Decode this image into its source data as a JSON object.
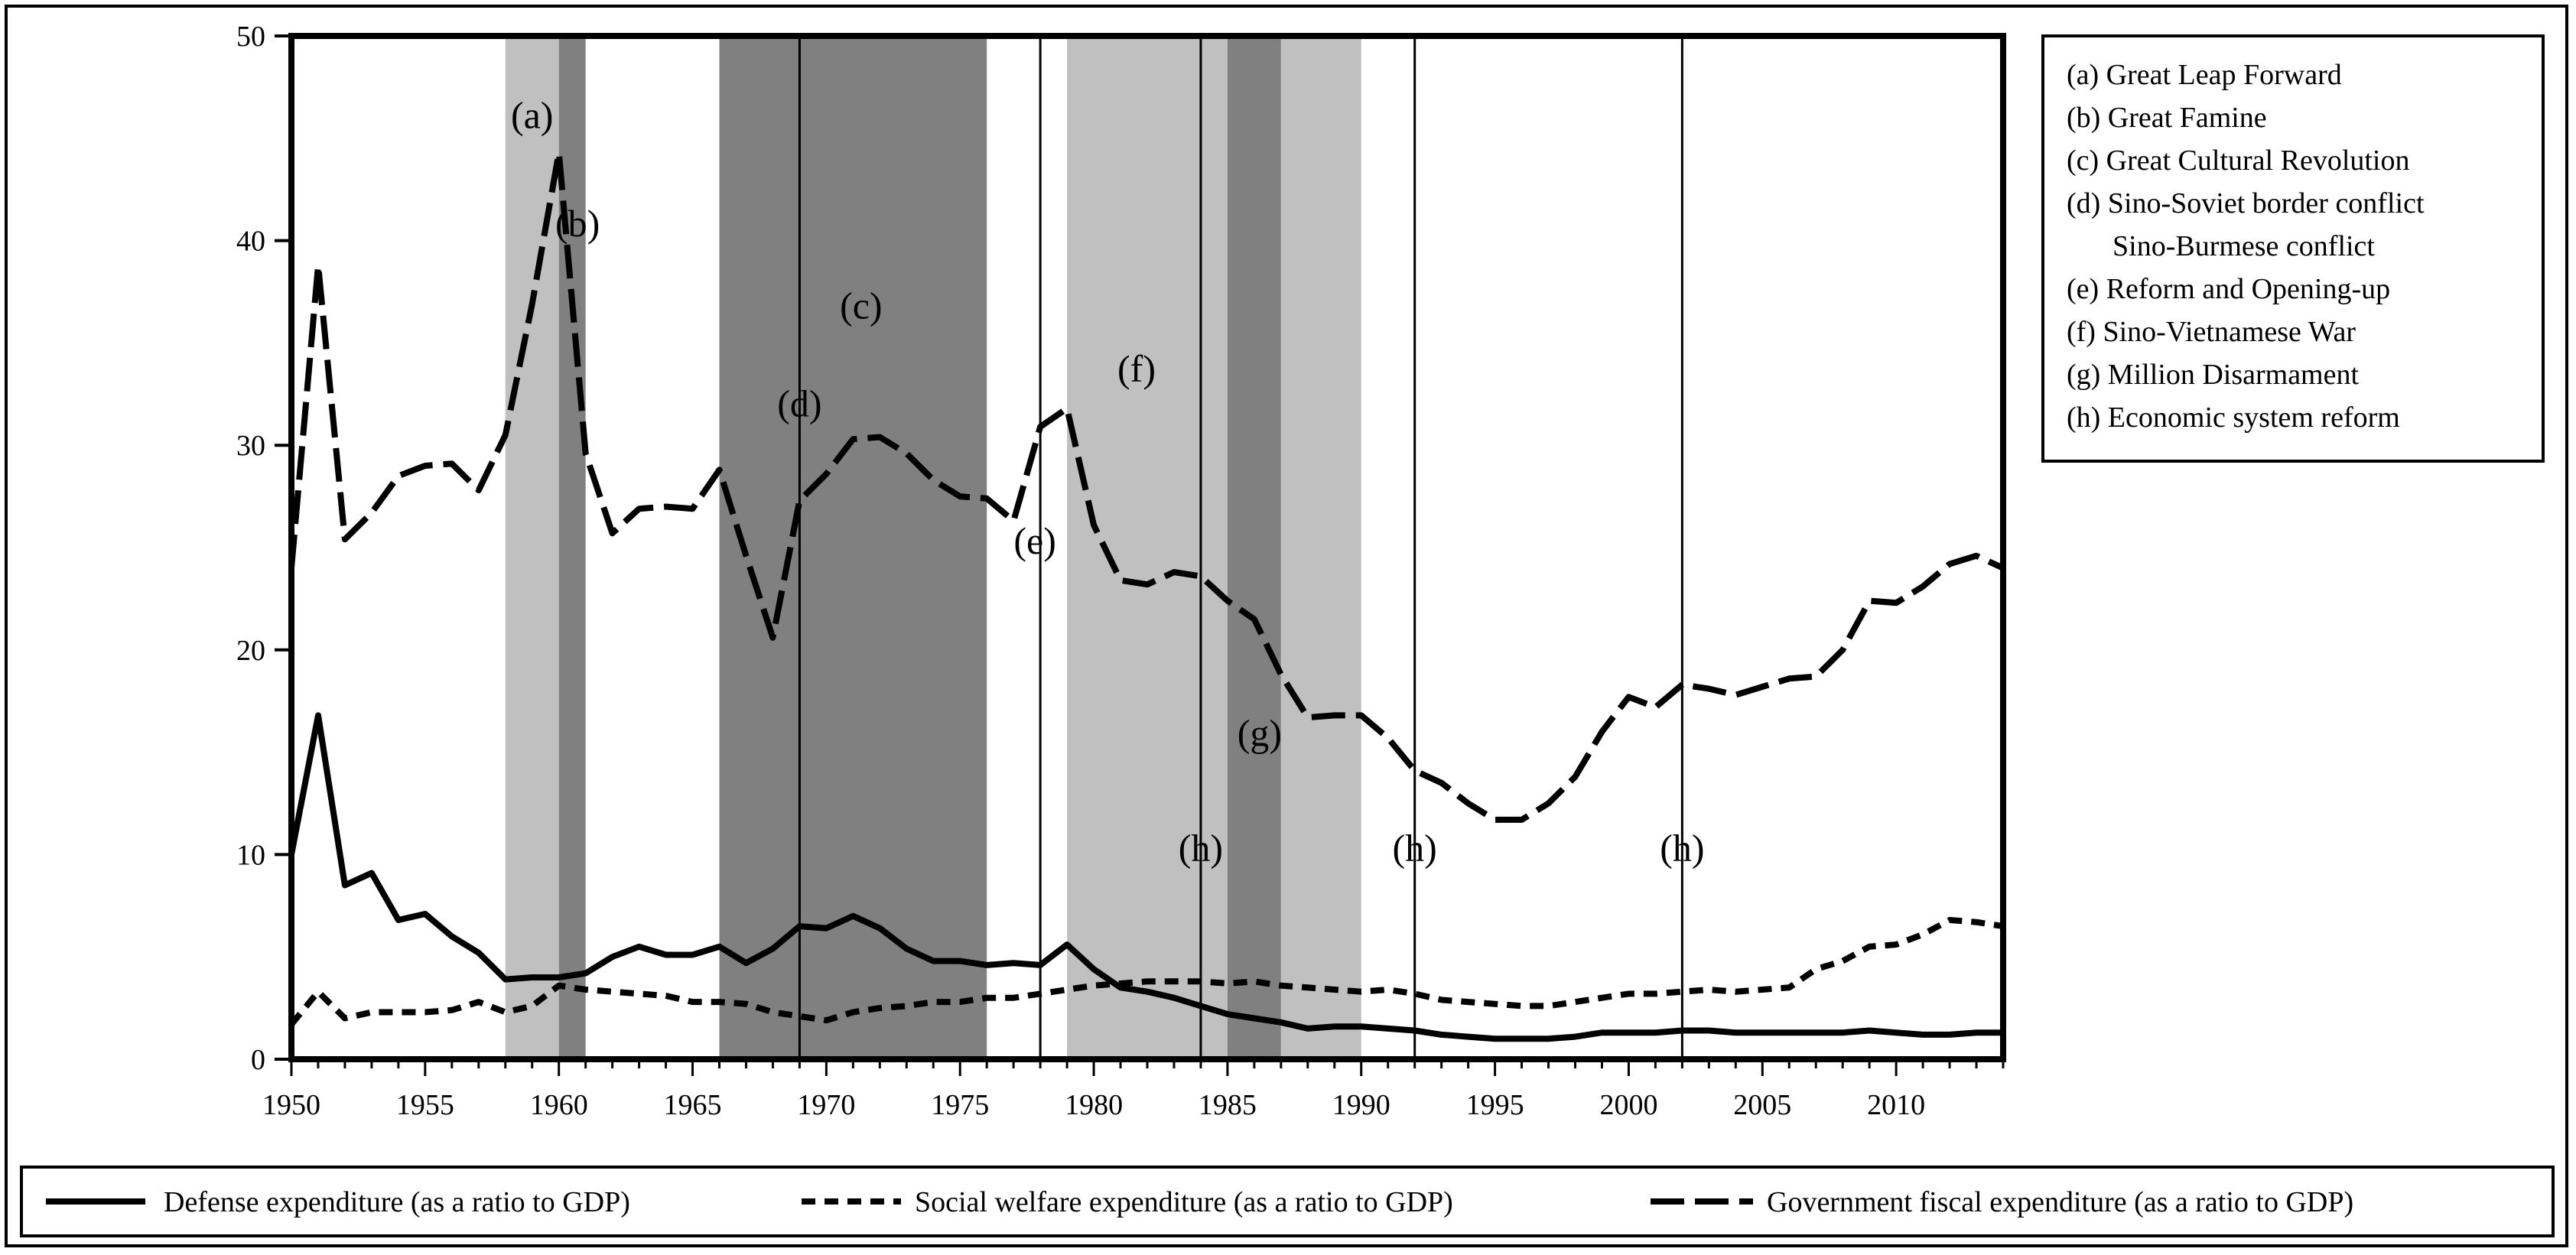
{
  "chart_data": {
    "type": "line",
    "title": "",
    "xlabel": "",
    "ylabel": "",
    "xlim": [
      1950,
      2014
    ],
    "ylim": [
      0,
      50
    ],
    "x_ticks": [
      1950,
      1955,
      1960,
      1965,
      1970,
      1975,
      1980,
      1985,
      1990,
      1995,
      2000,
      2005,
      2010
    ],
    "y_ticks": [
      0,
      10,
      20,
      30,
      40,
      50
    ],
    "grid": false,
    "legend_position": "bottom",
    "x": [
      1950,
      1951,
      1952,
      1953,
      1954,
      1955,
      1956,
      1957,
      1958,
      1959,
      1960,
      1961,
      1962,
      1963,
      1964,
      1965,
      1966,
      1967,
      1968,
      1969,
      1970,
      1971,
      1972,
      1973,
      1974,
      1975,
      1976,
      1977,
      1978,
      1979,
      1980,
      1981,
      1982,
      1983,
      1984,
      1985,
      1986,
      1987,
      1988,
      1989,
      1990,
      1991,
      1992,
      1993,
      1994,
      1995,
      1996,
      1997,
      1998,
      1999,
      2000,
      2001,
      2002,
      2003,
      2004,
      2005,
      2006,
      2007,
      2008,
      2009,
      2010,
      2011,
      2012,
      2013,
      2014
    ],
    "series": [
      {
        "name": "Defense expenditure (as a ratio to GDP)",
        "style": "solid",
        "values": [
          10.0,
          16.8,
          8.5,
          9.1,
          6.8,
          7.1,
          6.0,
          5.2,
          3.9,
          4.0,
          4.0,
          4.2,
          5.0,
          5.5,
          5.1,
          5.1,
          5.5,
          4.7,
          5.4,
          6.5,
          6.4,
          7.0,
          6.4,
          5.4,
          4.8,
          4.8,
          4.6,
          4.7,
          4.6,
          5.6,
          4.4,
          3.5,
          3.3,
          3.0,
          2.6,
          2.2,
          2.0,
          1.8,
          1.5,
          1.6,
          1.6,
          1.5,
          1.4,
          1.2,
          1.1,
          1.0,
          1.0,
          1.0,
          1.1,
          1.3,
          1.3,
          1.3,
          1.4,
          1.4,
          1.3,
          1.3,
          1.3,
          1.3,
          1.3,
          1.4,
          1.3,
          1.2,
          1.2,
          1.3,
          1.3
        ]
      },
      {
        "name": "Social welfare expenditure (as a ratio to GDP)",
        "style": "short-dash",
        "values": [
          1.7,
          3.3,
          2.0,
          2.3,
          2.3,
          2.3,
          2.4,
          2.8,
          2.3,
          2.6,
          3.6,
          3.4,
          3.3,
          3.2,
          3.1,
          2.8,
          2.8,
          2.7,
          2.3,
          2.1,
          1.9,
          2.3,
          2.5,
          2.6,
          2.8,
          2.8,
          3.0,
          3.0,
          3.2,
          3.4,
          3.6,
          3.7,
          3.8,
          3.8,
          3.8,
          3.7,
          3.8,
          3.6,
          3.5,
          3.4,
          3.3,
          3.4,
          3.2,
          2.9,
          2.8,
          2.7,
          2.6,
          2.6,
          2.8,
          3.0,
          3.2,
          3.2,
          3.3,
          3.4,
          3.3,
          3.4,
          3.5,
          4.4,
          4.8,
          5.5,
          5.6,
          6.1,
          6.8,
          6.7,
          6.5
        ]
      },
      {
        "name": "Government fiscal expenditure (as a ratio to GDP)",
        "style": "long-dash",
        "values": [
          24.0,
          38.8,
          25.4,
          26.7,
          28.5,
          29.0,
          29.1,
          27.8,
          30.5,
          36.9,
          44.3,
          29.6,
          25.7,
          26.9,
          27.0,
          26.9,
          28.8,
          24.6,
          20.6,
          27.3,
          28.6,
          30.3,
          30.4,
          29.6,
          28.3,
          27.5,
          27.4,
          26.3,
          30.9,
          31.8,
          26.1,
          23.4,
          23.2,
          23.8,
          23.6,
          22.4,
          21.5,
          18.8,
          16.7,
          16.8,
          16.8,
          15.7,
          14.1,
          13.5,
          12.5,
          11.7,
          11.7,
          12.5,
          13.8,
          16.0,
          17.7,
          17.2,
          18.3,
          18.1,
          17.8,
          18.2,
          18.6,
          18.7,
          20.0,
          22.4,
          22.3,
          23.1,
          24.2,
          24.6,
          24.0
        ]
      }
    ],
    "shaded_periods": [
      {
        "from": 1958,
        "to": 1960,
        "tone": "light"
      },
      {
        "from": 1960,
        "to": 1961,
        "tone": "dark"
      },
      {
        "from": 1966,
        "to": 1976,
        "tone": "dark"
      },
      {
        "from": 1979,
        "to": 1985,
        "tone": "light"
      },
      {
        "from": 1985,
        "to": 1987,
        "tone": "dark"
      },
      {
        "from": 1987,
        "to": 1990,
        "tone": "light"
      }
    ],
    "vertical_lines": [
      1969,
      1978,
      1984,
      1992,
      2002
    ],
    "annotations": [
      {
        "text": "(a)",
        "x": 1959,
        "y": 45.5
      },
      {
        "text": "(b)",
        "x": 1960.7,
        "y": 40.2
      },
      {
        "text": "(c)",
        "x": 1971.3,
        "y": 36.2
      },
      {
        "text": "(d)",
        "x": 1969.0,
        "y": 31.4
      },
      {
        "text": "(f)",
        "x": 1981.6,
        "y": 33.1
      },
      {
        "text": "(e)",
        "x": 1977.8,
        "y": 24.7
      },
      {
        "text": "(g)",
        "x": 1986.2,
        "y": 15.3
      },
      {
        "text": "(h)",
        "x": 1984.0,
        "y": 9.7
      },
      {
        "text": "(h)",
        "x": 1992.0,
        "y": 9.7
      },
      {
        "text": "(h)",
        "x": 2002.0,
        "y": 9.7
      }
    ],
    "period_legend": [
      "(a) Great Leap Forward",
      "(b) Great Famine",
      "(c) Great Cultural Revolution",
      "(d) Sino-Soviet border conflict",
      "Sino-Burmese conflict",
      "(e) Reform and Opening-up",
      "(f) Sino-Vietnamese War",
      "(g) Million Disarmament",
      "(h) Economic system reform"
    ],
    "colors": {
      "light_shade": "#c0c0c0",
      "dark_shade": "#808080",
      "line": "#000000"
    }
  }
}
